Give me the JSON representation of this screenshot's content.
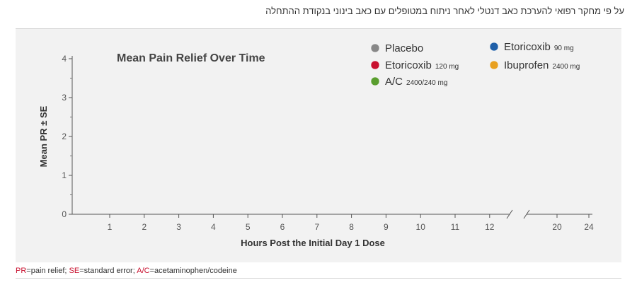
{
  "header": {
    "text": "על פי מחקר רפואי להערכת כאב דנטלי לאחר ניתוח במטופלים עם כאב בינוני בנקודת ההתחלה"
  },
  "chart_data": {
    "type": "line",
    "title": "Mean Pain Relief Over Time",
    "xlabel": "Hours Post the Initial Day 1 Dose",
    "ylabel": "Mean PR ± SE",
    "x_ticks": [
      1,
      2,
      3,
      4,
      5,
      6,
      7,
      8,
      9,
      10,
      11,
      12,
      20,
      24
    ],
    "x_break": "between 12 and 20",
    "y_ticks": [
      0,
      1,
      2,
      3,
      4
    ],
    "ylim": [
      0,
      4
    ],
    "grid": false,
    "legend_position": "top-right",
    "series": [
      {
        "name": "Placebo",
        "dose": "",
        "color": "#888888",
        "values": []
      },
      {
        "name": "Etoricoxib",
        "dose": "120 mg",
        "color": "#c8102e",
        "values": []
      },
      {
        "name": "A/C",
        "dose": "2400/240 mg",
        "color": "#5a9e2f",
        "values": []
      },
      {
        "name": "Etoricoxib",
        "dose": "90 mg",
        "color": "#1f5fa8",
        "values": []
      },
      {
        "name": "Ibuprofen",
        "dose": "2400 mg",
        "color": "#e8a020",
        "values": []
      }
    ]
  },
  "footnote": {
    "items": [
      {
        "abbr": "PR",
        "text": "=pain relief;  "
      },
      {
        "abbr": "SE",
        "text": "=standard error; "
      },
      {
        "abbr": "A/C",
        "text": "=acetaminophen/codeine"
      }
    ]
  }
}
